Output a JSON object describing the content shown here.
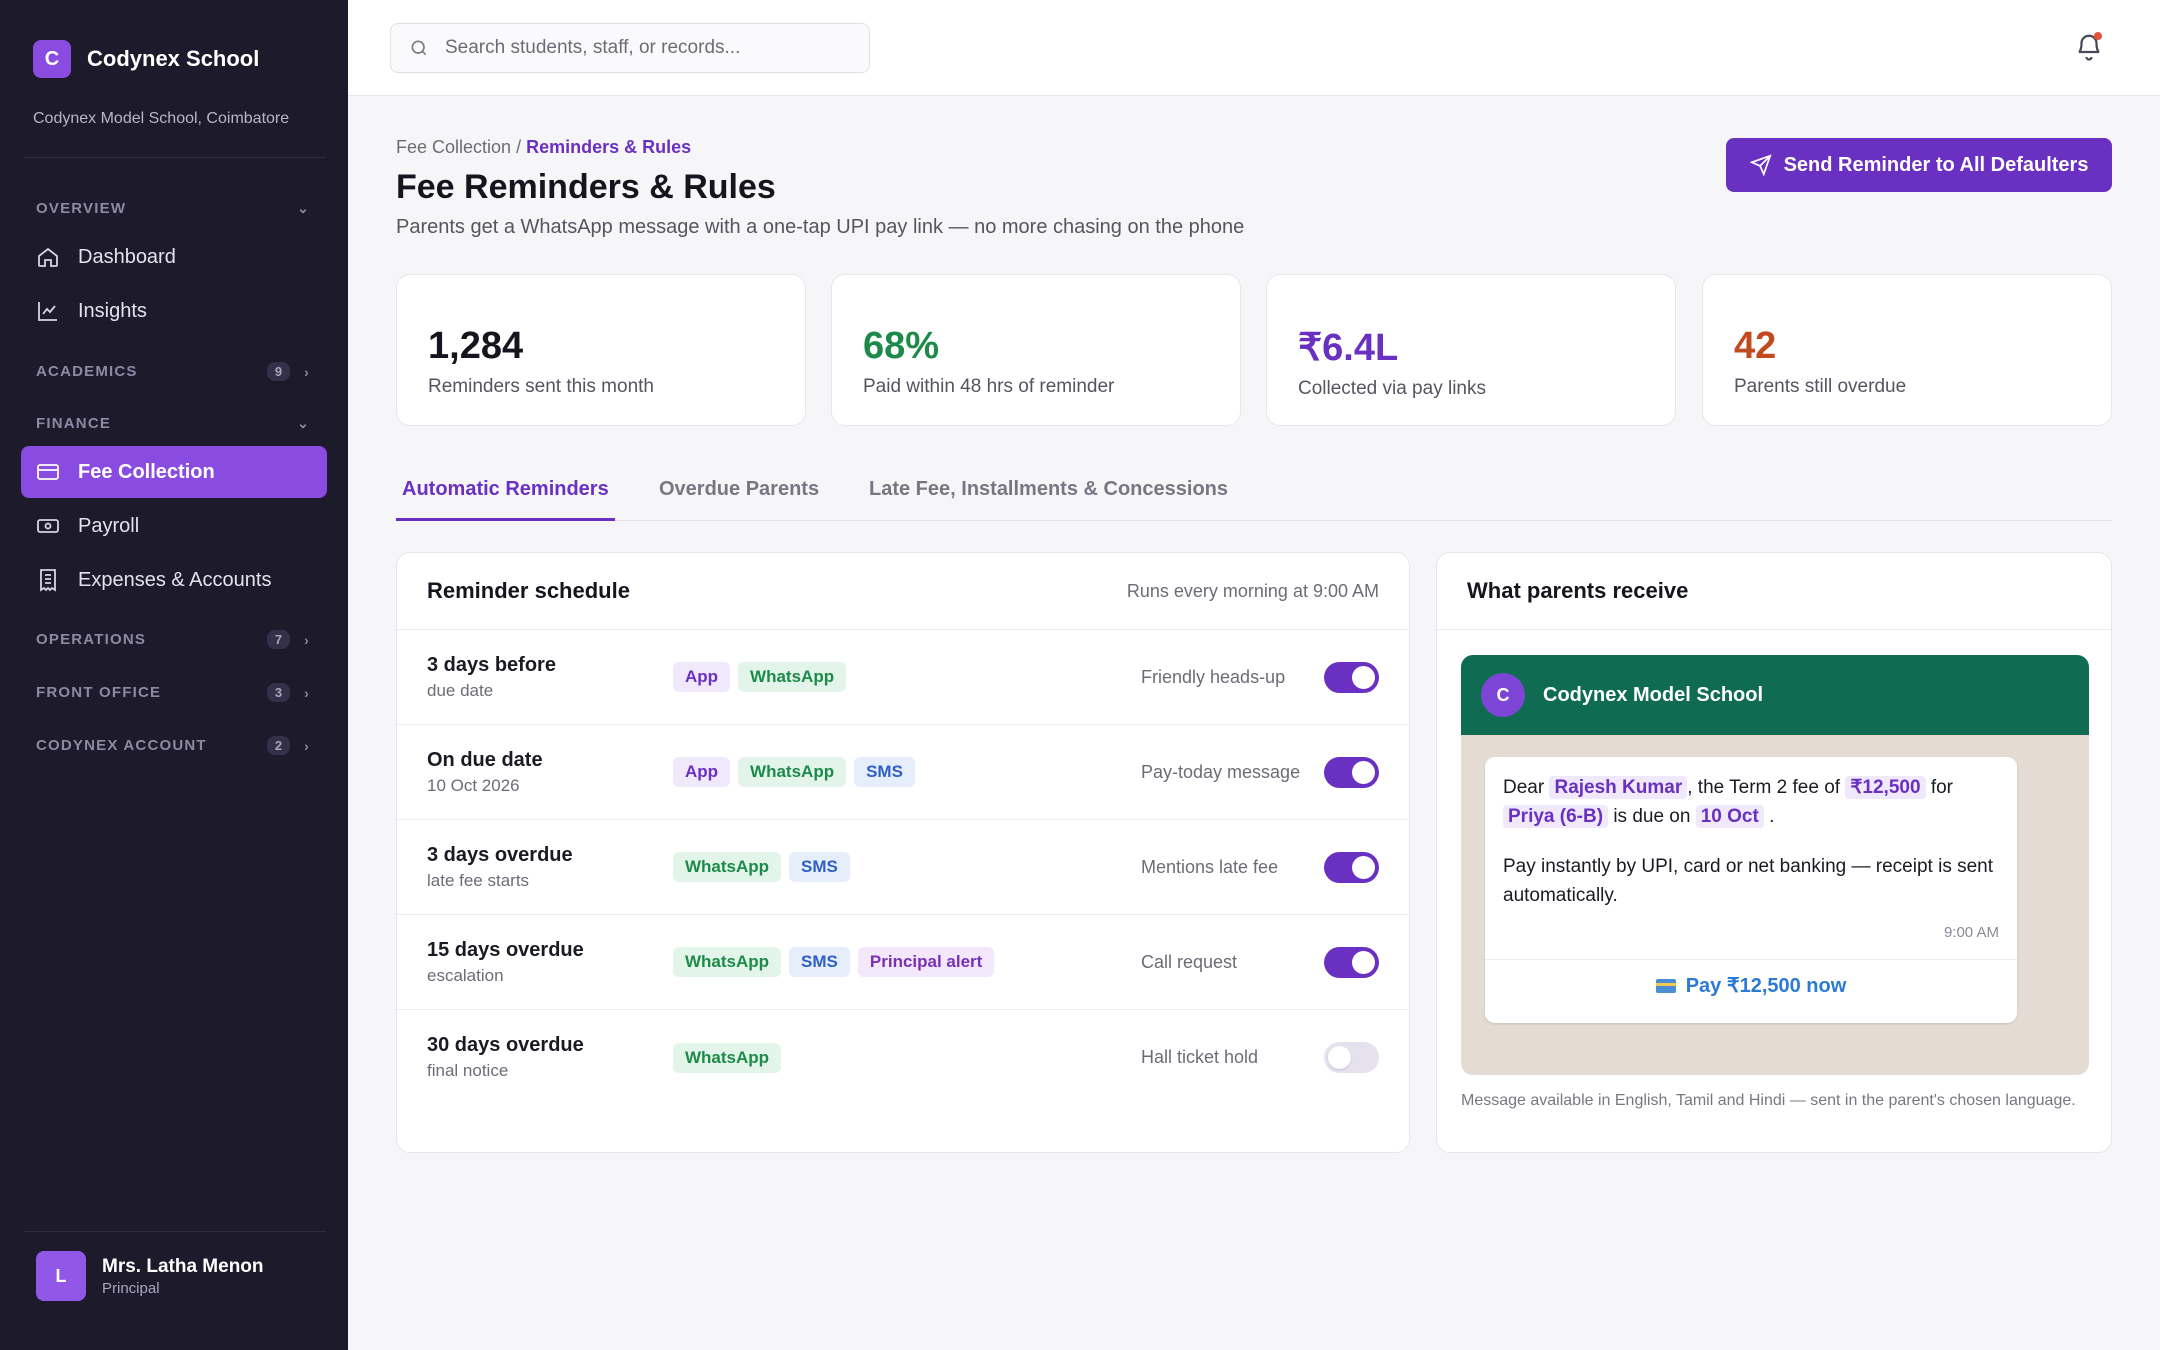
{
  "brand": {
    "logo_letter": "C",
    "name": "Codynex School",
    "subtitle": "Codynex Model School, Coimbatore"
  },
  "sidebar": {
    "sections": [
      {
        "label": "OVERVIEW",
        "count": "",
        "expanded": true
      },
      {
        "label": "ACADEMICS",
        "count": "9",
        "expanded": false
      },
      {
        "label": "FINANCE",
        "count": "",
        "expanded": true
      },
      {
        "label": "OPERATIONS",
        "count": "7",
        "expanded": false
      },
      {
        "label": "FRONT OFFICE",
        "count": "3",
        "expanded": false
      },
      {
        "label": "CODYNEX ACCOUNT",
        "count": "2",
        "expanded": false
      }
    ],
    "items": [
      {
        "label": "Dashboard",
        "icon": "home-icon"
      },
      {
        "label": "Insights",
        "icon": "chart-icon"
      },
      {
        "label": "Fee Collection",
        "icon": "card-icon",
        "active": true
      },
      {
        "label": "Payroll",
        "icon": "cash-icon"
      },
      {
        "label": "Expenses & Accounts",
        "icon": "receipt-icon"
      }
    ],
    "user": {
      "initial": "L",
      "name": "Mrs. Latha Menon",
      "role": "Principal"
    }
  },
  "topbar": {
    "search_placeholder": "Search students, staff, or records...",
    "notification_dot": true
  },
  "page": {
    "breadcrumb_parent": "Fee Collection",
    "breadcrumb_sep": " / ",
    "breadcrumb_current": "Reminders & Rules",
    "title": "Fee Reminders & Rules",
    "subtitle": "Parents get a WhatsApp message with a one-tap UPI pay link — no more chasing on the phone",
    "primary_button": "Send Reminder to All Defaulters"
  },
  "stats": [
    {
      "value": "1,284",
      "label": "Reminders sent this month",
      "color": "#15151f"
    },
    {
      "value": "68%",
      "label": "Paid within 48 hrs of reminder",
      "color": "#1d8a4a"
    },
    {
      "value": "₹6.4L",
      "label": "Collected via pay links",
      "color": "#6a30c2"
    },
    {
      "value": "42",
      "label": "Parents still overdue",
      "color": "#c24a1f"
    }
  ],
  "tabs": [
    "Automatic Reminders",
    "Overdue Parents",
    "Late Fee, Installments & Concessions"
  ],
  "schedule": {
    "title": "Reminder schedule",
    "meta": "Runs every morning at 9:00 AM",
    "rows": [
      {
        "title": "3 days before",
        "sub": "due date",
        "channels": [
          "App",
          "WhatsApp"
        ],
        "note": "Friendly heads-up",
        "enabled": true
      },
      {
        "title": "On due date",
        "sub": "10 Oct 2026",
        "channels": [
          "App",
          "WhatsApp",
          "SMS"
        ],
        "note": "Pay-today message",
        "enabled": true
      },
      {
        "title": "3 days overdue",
        "sub": "late fee starts",
        "channels": [
          "WhatsApp",
          "SMS"
        ],
        "note": "Mentions late fee",
        "enabled": true
      },
      {
        "title": "15 days overdue",
        "sub": "escalation",
        "channels": [
          "WhatsApp",
          "SMS",
          "Principal alert"
        ],
        "note": "Call request",
        "enabled": true
      },
      {
        "title": "30 days overdue",
        "sub": "final notice",
        "channels": [
          "WhatsApp"
        ],
        "note": "Hall ticket hold",
        "enabled": false
      }
    ]
  },
  "preview": {
    "title": "What parents receive",
    "sender_initial": "C",
    "sender": "Codynex Model School",
    "msg": {
      "dear": "Dear",
      "parent": "Rajesh Kumar",
      "mid1": ", the Term 2 fee of",
      "amount": "₹12,500",
      "for": "for",
      "student": "Priya (6-B)",
      "due_on": "is due on",
      "date": "10 Oct",
      "end": ".",
      "line2": "Pay instantly by UPI, card or net banking — receipt is sent automatically.",
      "time": "9:00 AM",
      "pay_link": "Pay ₹12,500 now"
    },
    "note": "Message available in English, Tamil and Hindi — sent in the parent's chosen language."
  }
}
